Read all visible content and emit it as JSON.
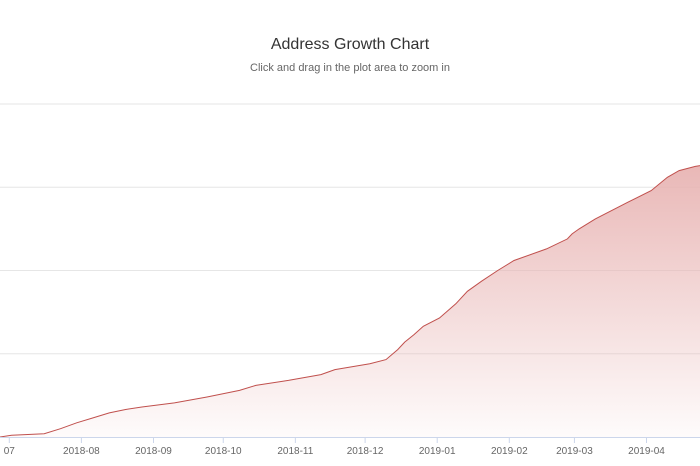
{
  "chart_data": {
    "type": "area",
    "title": "Address Growth Chart",
    "subtitle": "Click and drag in the plot area to zoom in",
    "xlabel": "",
    "ylabel": "",
    "x_tick_labels": [
      "07",
      "2018-08",
      "2018-09",
      "2018-10",
      "2018-11",
      "2018-12",
      "2019-01",
      "2019-02",
      "2019-03",
      "2019-04"
    ],
    "x_tick_dates": [
      "2018-07-01",
      "2018-08-01",
      "2018-09-01",
      "2018-10-01",
      "2018-11-01",
      "2018-12-01",
      "2019-01-01",
      "2019-02-01",
      "2019-03-01",
      "2019-04-01"
    ],
    "xlim": [
      "2018-06-27",
      "2019-04-24"
    ],
    "ylim": [
      0,
      4
    ],
    "y_gridlines": [
      0,
      1,
      2,
      3,
      4
    ],
    "y_axis_labels_visible": false,
    "grid": true,
    "legend": "none",
    "colors": {
      "line": "#c0504d",
      "fill_top": "#e8b4b3",
      "grid": "#e6e6e6"
    },
    "series": [
      {
        "x": [
          "2018-06-27",
          "2018-07-02",
          "2018-07-16",
          "2018-07-23",
          "2018-07-30",
          "2018-08-06",
          "2018-08-13",
          "2018-08-20",
          "2018-08-27",
          "2018-09-10",
          "2018-09-24",
          "2018-10-08",
          "2018-10-15",
          "2018-10-29",
          "2018-11-12",
          "2018-11-15",
          "2018-11-18",
          "2018-12-03",
          "2018-12-10",
          "2018-12-15",
          "2018-12-18",
          "2018-12-22",
          "2018-12-26",
          "2019-01-02",
          "2019-01-09",
          "2019-01-14",
          "2019-01-20",
          "2019-01-27",
          "2019-02-03",
          "2019-02-17",
          "2019-02-26",
          "2019-02-28",
          "2019-03-03",
          "2019-03-10",
          "2019-03-24",
          "2019-04-03",
          "2019-04-10",
          "2019-04-15",
          "2019-04-22",
          "2019-04-24"
        ],
        "values": [
          0.0,
          0.02,
          0.04,
          0.1,
          0.17,
          0.23,
          0.29,
          0.33,
          0.36,
          0.41,
          0.48,
          0.56,
          0.62,
          0.68,
          0.75,
          0.78,
          0.81,
          0.88,
          0.93,
          1.05,
          1.14,
          1.23,
          1.33,
          1.43,
          1.6,
          1.75,
          1.87,
          2.0,
          2.12,
          2.26,
          2.38,
          2.44,
          2.5,
          2.62,
          2.82,
          2.96,
          3.12,
          3.2,
          3.25,
          3.26
        ]
      }
    ]
  }
}
